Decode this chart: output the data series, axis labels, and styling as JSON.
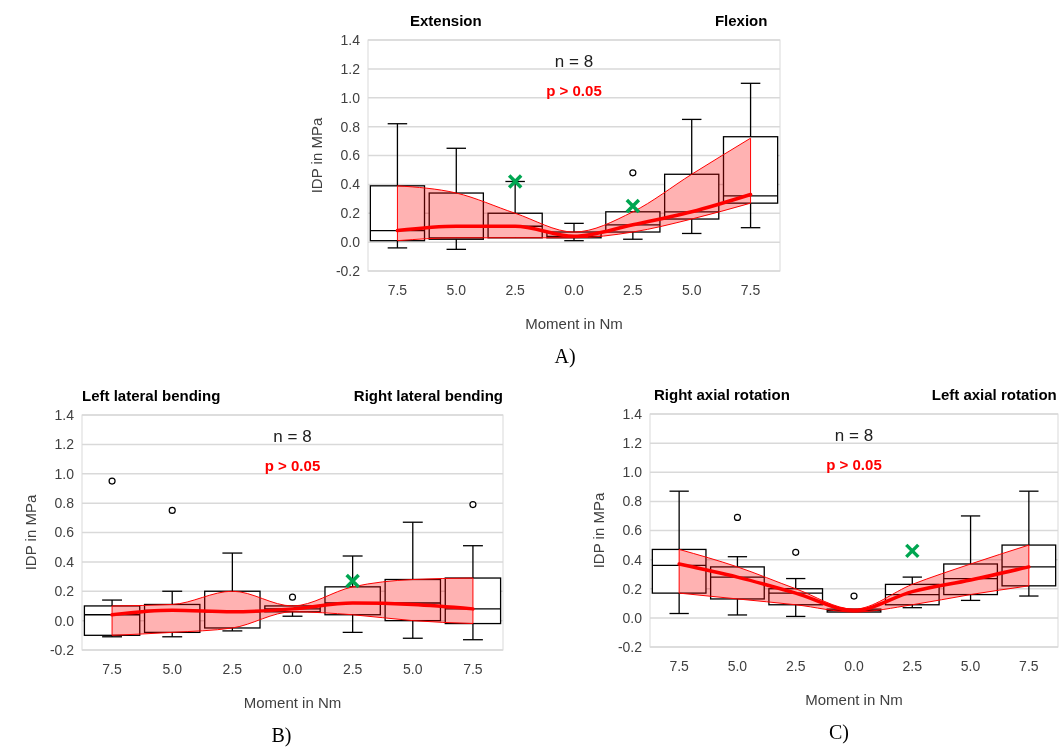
{
  "chart_data": [
    {
      "type": "box",
      "title": "n = 8",
      "subtitle": "p > 0.05",
      "xlabel": "Moment in Nm",
      "ylabel": "IDP in MPa",
      "annotations": [
        "Extension",
        "Flexion",
        "A)"
      ],
      "categories": [
        "7.5",
        "5.0",
        "2.5",
        "0.0",
        "2.5",
        "5.0",
        "7.5"
      ],
      "boxes": [
        {
          "low": -0.04,
          "q1": 0.01,
          "median": 0.08,
          "q3": 0.39,
          "high": 0.82
        },
        {
          "low": -0.05,
          "q1": 0.02,
          "median": 0.03,
          "q3": 0.34,
          "high": 0.65
        },
        {
          "low": 0.03,
          "q1": 0.03,
          "median": 0.11,
          "q3": 0.2,
          "high": 0.42
        },
        {
          "low": 0.01,
          "q1": 0.03,
          "median": 0.04,
          "q3": 0.07,
          "high": 0.13
        },
        {
          "low": 0.02,
          "q1": 0.07,
          "median": 0.12,
          "q3": 0.21,
          "high": 0.21,
          "outliers": [
            0.48
          ]
        },
        {
          "low": 0.06,
          "q1": 0.16,
          "median": 0.21,
          "q3": 0.47,
          "high": 0.85
        },
        {
          "low": 0.1,
          "q1": 0.27,
          "median": 0.32,
          "q3": 0.73,
          "high": 1.1
        }
      ],
      "series": [
        {
          "type": "line",
          "color": "#ff0000",
          "values": [
            0.08,
            0.11,
            0.11,
            0.04,
            0.12,
            0.21,
            0.33
          ],
          "lower": [
            0.01,
            0.03,
            0.03,
            0.03,
            0.07,
            0.16,
            0.27
          ],
          "upper": [
            0.39,
            0.34,
            0.2,
            0.07,
            0.21,
            0.47,
            0.72
          ]
        },
        {
          "type": "scatter",
          "color": "#00a651",
          "marker": "cross",
          "values": [
            null,
            null,
            0.42,
            null,
            0.25,
            null,
            null
          ]
        }
      ],
      "ylim": [
        -0.2,
        1.4
      ],
      "yticks": [
        {
          "value": -0.2,
          "label": "-0.2"
        },
        {
          "value": 0,
          "label": "0.0"
        },
        {
          "value": 0.2,
          "label": "0.2"
        },
        {
          "value": 0.4,
          "label": "0.4"
        },
        {
          "value": 0.6,
          "label": "0.6"
        },
        {
          "value": 0.8,
          "label": "0.8"
        },
        {
          "value": 1,
          "label": "1.0"
        },
        {
          "value": 1.2,
          "label": "1.2"
        },
        {
          "value": 1.4,
          "label": "1.4"
        }
      ],
      "grid": "y"
    },
    {
      "type": "box",
      "title": "n = 8",
      "subtitle": "p > 0.05",
      "xlabel": "Moment in Nm",
      "ylabel": "IDP in MPa",
      "annotations": [
        "Left lateral bending",
        "Right lateral bending",
        "B)"
      ],
      "categories": [
        "7.5",
        "5.0",
        "2.5",
        "0.0",
        "2.5",
        "5.0",
        "7.5"
      ],
      "boxes": [
        {
          "low": -0.11,
          "q1": -0.1,
          "median": 0.04,
          "q3": 0.1,
          "high": 0.14,
          "outliers": [
            0.95
          ]
        },
        {
          "low": -0.11,
          "q1": -0.08,
          "median": 0.07,
          "q3": 0.11,
          "high": 0.2,
          "outliers": [
            0.75
          ]
        },
        {
          "low": -0.07,
          "q1": -0.05,
          "median": 0.06,
          "q3": 0.2,
          "high": 0.46
        },
        {
          "low": 0.03,
          "q1": 0.06,
          "median": 0.08,
          "q3": 0.1,
          "high": 0.1,
          "outliers": [
            0.16
          ]
        },
        {
          "low": -0.08,
          "q1": 0.04,
          "median": 0.12,
          "q3": 0.23,
          "high": 0.44
        },
        {
          "low": -0.12,
          "q1": 0,
          "median": 0.12,
          "q3": 0.28,
          "high": 0.67
        },
        {
          "low": -0.13,
          "q1": -0.02,
          "median": 0.08,
          "q3": 0.29,
          "high": 0.51,
          "outliers": [
            0.79
          ]
        }
      ],
      "series": [
        {
          "type": "line",
          "color": "#ff0000",
          "values": [
            0.04,
            0.07,
            0.06,
            0.08,
            0.12,
            0.11,
            0.08
          ],
          "lower": [
            -0.1,
            -0.08,
            -0.05,
            0.06,
            0.04,
            0,
            -0.02
          ],
          "upper": [
            0.1,
            0.11,
            0.2,
            0.1,
            0.23,
            0.28,
            0.29
          ]
        },
        {
          "type": "scatter",
          "color": "#00a651",
          "marker": "cross",
          "values": [
            null,
            null,
            null,
            null,
            0.27,
            null,
            null
          ]
        }
      ],
      "ylim": [
        -0.2,
        1.4
      ],
      "yticks": [
        {
          "value": -0.2,
          "label": "-0.2"
        },
        {
          "value": 0,
          "label": "0.0"
        },
        {
          "value": 0.2,
          "label": "0.2"
        },
        {
          "value": 0.4,
          "label": "0.4"
        },
        {
          "value": 0.6,
          "label": "0.6"
        },
        {
          "value": 0.8,
          "label": "0.8"
        },
        {
          "value": 1,
          "label": "1.0"
        },
        {
          "value": 1.2,
          "label": "1.2"
        },
        {
          "value": 1.4,
          "label": "1.4"
        }
      ],
      "grid": "y"
    },
    {
      "type": "box",
      "title": "n = 8",
      "subtitle": "p > 0.05",
      "xlabel": "Moment in Nm",
      "ylabel": "IDP in MPa",
      "annotations": [
        "Right axial rotation",
        "Left axial rotation",
        "C)"
      ],
      "categories": [
        "7.5",
        "5.0",
        "2.5",
        "0.0",
        "2.5",
        "5.0",
        "7.5"
      ],
      "boxes": [
        {
          "low": 0.03,
          "q1": 0.17,
          "median": 0.36,
          "q3": 0.47,
          "high": 0.87
        },
        {
          "low": 0.02,
          "q1": 0.13,
          "median": 0.28,
          "q3": 0.35,
          "high": 0.42,
          "outliers": [
            0.69
          ]
        },
        {
          "low": 0.01,
          "q1": 0.09,
          "median": 0.17,
          "q3": 0.2,
          "high": 0.27,
          "outliers": [
            0.45
          ]
        },
        {
          "low": 0.04,
          "q1": 0.04,
          "median": 0.05,
          "q3": 0.06,
          "high": 0.06,
          "outliers": [
            0.15
          ]
        },
        {
          "low": 0.07,
          "q1": 0.09,
          "median": 0.16,
          "q3": 0.23,
          "high": 0.28
        },
        {
          "low": 0.12,
          "q1": 0.16,
          "median": 0.27,
          "q3": 0.37,
          "high": 0.7
        },
        {
          "low": 0.15,
          "q1": 0.22,
          "median": 0.35,
          "q3": 0.5,
          "high": 0.87
        }
      ],
      "series": [
        {
          "type": "line",
          "color": "#ff0000",
          "values": [
            0.37,
            0.28,
            0.17,
            0.05,
            0.18,
            0.26,
            0.35
          ],
          "lower": [
            0.17,
            0.13,
            0.09,
            0.04,
            0.09,
            0.16,
            0.22
          ],
          "upper": [
            0.47,
            0.35,
            0.2,
            0.06,
            0.23,
            0.37,
            0.5
          ]
        },
        {
          "type": "scatter",
          "color": "#00a651",
          "marker": "cross",
          "values": [
            null,
            null,
            null,
            null,
            0.46,
            null,
            null
          ]
        }
      ],
      "ylim": [
        -0.2,
        1.4
      ],
      "yticks": [
        {
          "value": -0.2,
          "label": "-0.2"
        },
        {
          "value": 0,
          "label": "0.0"
        },
        {
          "value": 0.2,
          "label": "0.2"
        },
        {
          "value": 0.4,
          "label": "0.4"
        },
        {
          "value": 0.6,
          "label": "0.6"
        },
        {
          "value": 0.8,
          "label": "0.8"
        },
        {
          "value": 1,
          "label": "1.0"
        },
        {
          "value": 1.2,
          "label": "1.2"
        },
        {
          "value": 1.4,
          "label": "1.4"
        }
      ],
      "grid": "y"
    }
  ]
}
